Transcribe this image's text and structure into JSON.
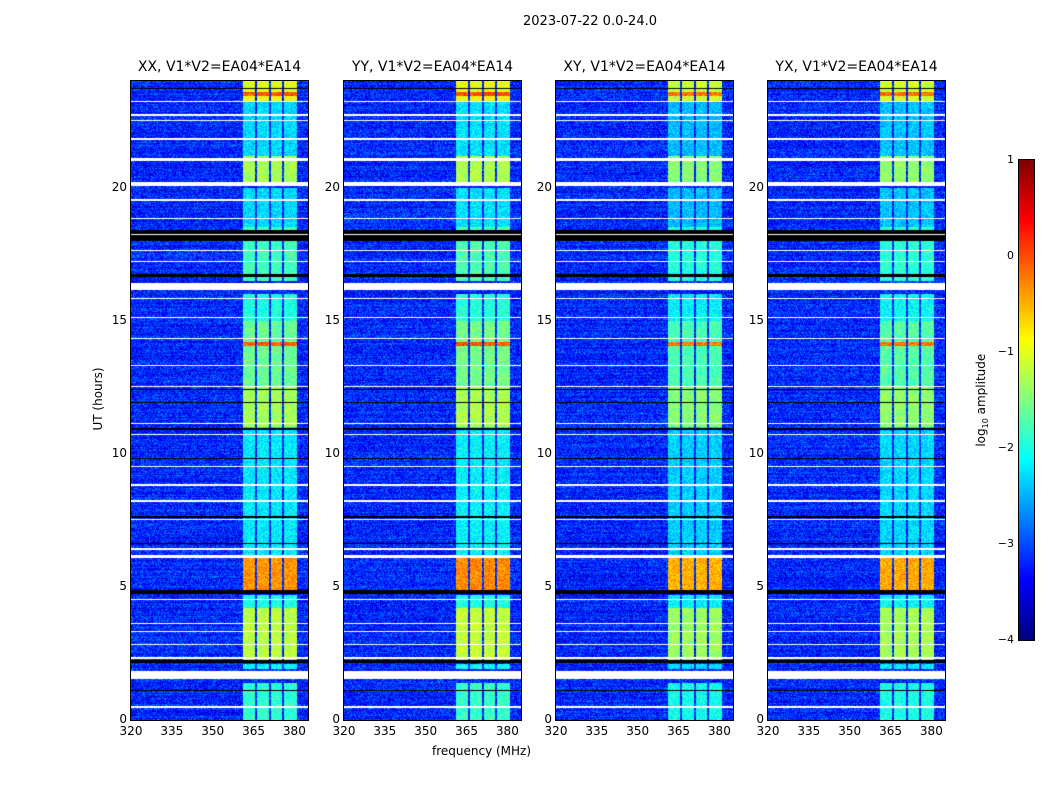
{
  "chart_data": {
    "type": "heatmap",
    "title": "2023-07-22 0.0-24.0",
    "xlabel": "frequency (MHz)",
    "ylabel": "UT (hours)",
    "xlim": [
      320,
      385
    ],
    "ylim": [
      0,
      24
    ],
    "xticks": [
      "320",
      "335",
      "350",
      "365",
      "380"
    ],
    "xtick_values": [
      320,
      335,
      350,
      365,
      380
    ],
    "yticks": [
      "0",
      "5",
      "10",
      "15",
      "20"
    ],
    "ytick_values": [
      0,
      5,
      10,
      15,
      20
    ],
    "colorbar": {
      "label_prefix": "log",
      "label_sub": "10",
      "label_suffix": " amplitude",
      "range": [
        -4,
        1
      ],
      "ticks": [
        "1",
        "0",
        "−1",
        "−2",
        "−3",
        "−4"
      ],
      "tick_values": [
        1,
        0,
        -1,
        -2,
        -3,
        -4
      ],
      "colormap": "jet"
    },
    "panels": [
      {
        "title": "XX, V1*V2=EA04*EA14",
        "band_offset": 0.0
      },
      {
        "title": "YY, V1*V2=EA04*EA14",
        "band_offset": 0.05
      },
      {
        "title": "XY, V1*V2=EA04*EA14",
        "band_offset": -0.15
      },
      {
        "title": "YX, V1*V2=EA04*EA14",
        "band_offset": -0.1
      }
    ],
    "background_log_amplitude": -3.2,
    "subbands_mhz": [
      [
        361,
        365.5
      ],
      [
        366.2,
        370.6
      ],
      [
        371.3,
        375.6
      ],
      [
        376.3,
        380.8
      ]
    ],
    "band_segments_hours": [
      [
        0,
        1.4,
        -1.9
      ],
      [
        1.9,
        2.1,
        -2.1
      ],
      [
        2.25,
        4.2,
        -1.2
      ],
      [
        4.2,
        4.7,
        -2.0
      ],
      [
        4.9,
        6.1,
        -0.35
      ],
      [
        6.1,
        11,
        -2.2
      ],
      [
        11,
        12.5,
        -1.3
      ],
      [
        12.5,
        14.05,
        -1.6
      ],
      [
        14.05,
        14.2,
        -0.1
      ],
      [
        14.2,
        15,
        -1.6
      ],
      [
        15,
        16,
        -2.0
      ],
      [
        16.5,
        18.5,
        -1.8
      ],
      [
        18.5,
        20,
        -2.3
      ],
      [
        20.2,
        21.2,
        -1.3
      ],
      [
        21.2,
        23.2,
        -2.3
      ],
      [
        23.2,
        24,
        -1.0
      ],
      [
        23.45,
        23.6,
        -0.05
      ]
    ],
    "flagged_hours": [
      [
        0.45,
        0.52
      ],
      [
        1.55,
        1.85
      ],
      [
        2.3,
        2.35
      ],
      [
        2.8,
        2.85
      ],
      [
        3.3,
        3.35
      ],
      [
        3.6,
        3.65
      ],
      [
        4.5,
        4.55
      ],
      [
        6.1,
        6.2
      ],
      [
        6.4,
        6.45
      ],
      [
        7.5,
        7.55
      ],
      [
        8.2,
        8.25
      ],
      [
        8.8,
        8.85
      ],
      [
        9.5,
        9.55
      ],
      [
        10.7,
        10.75
      ],
      [
        11.1,
        11.15
      ],
      [
        12.5,
        12.55
      ],
      [
        13.3,
        13.35
      ],
      [
        14.3,
        14.35
      ],
      [
        15.1,
        15.15
      ],
      [
        15.8,
        15.85
      ],
      [
        16.15,
        16.4
      ],
      [
        17.2,
        17.25
      ],
      [
        17.6,
        17.65
      ],
      [
        18.2,
        18.25
      ],
      [
        18.8,
        18.85
      ],
      [
        19.5,
        19.55
      ],
      [
        20.05,
        20.2
      ],
      [
        21.0,
        21.1
      ],
      [
        21.8,
        21.85
      ],
      [
        22.5,
        22.55
      ],
      [
        22.7,
        22.75
      ],
      [
        23.2,
        23.25
      ]
    ],
    "dropout_hours": [
      [
        1.08,
        1.13
      ],
      [
        2.15,
        2.27
      ],
      [
        4.75,
        4.87
      ],
      [
        6.6,
        6.64
      ],
      [
        7.6,
        7.65
      ],
      [
        9.8,
        9.84
      ],
      [
        10.9,
        10.95
      ],
      [
        11.9,
        11.95
      ],
      [
        12.4,
        12.45
      ],
      [
        16.65,
        16.75
      ],
      [
        18.0,
        18.4
      ],
      [
        23.7,
        23.75
      ]
    ]
  }
}
